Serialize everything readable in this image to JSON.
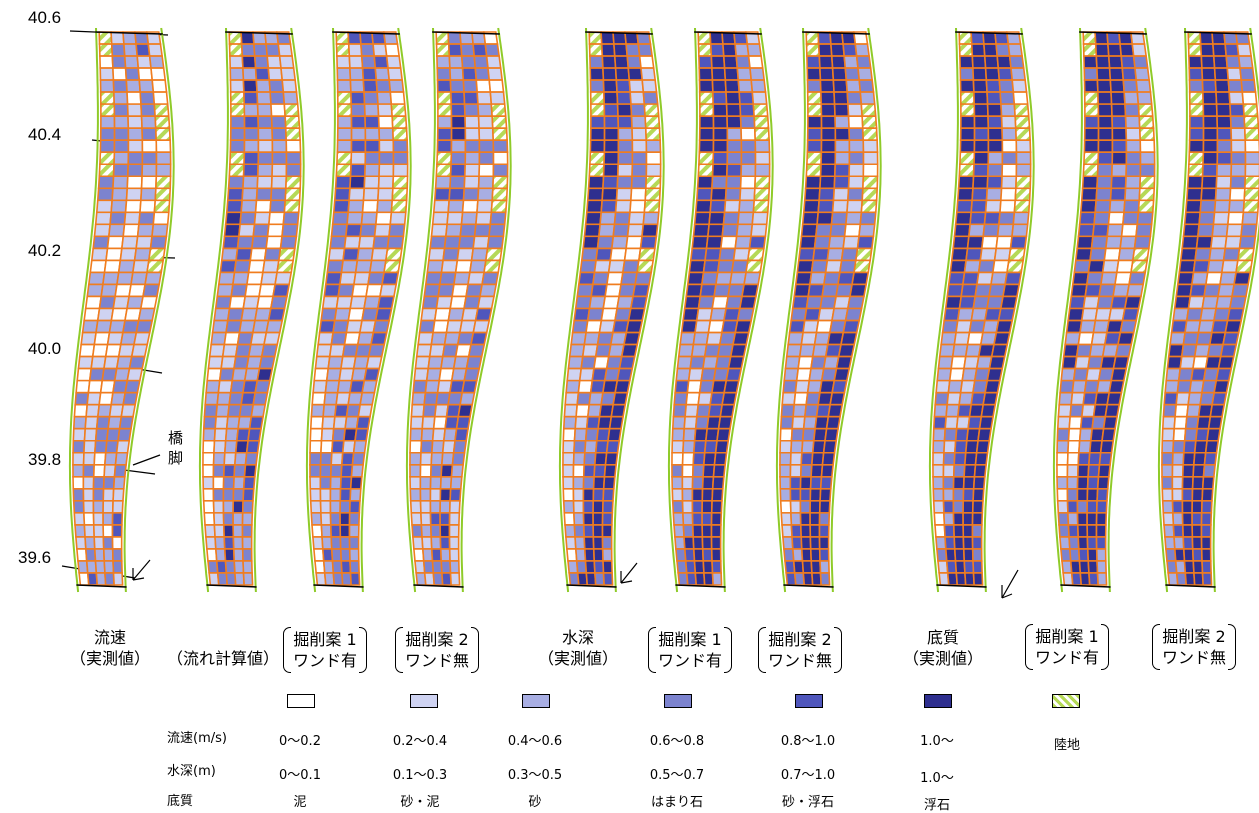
{
  "km_labels": [
    "40.6",
    "40.4",
    "40.2",
    "40.0",
    "39.8",
    "39.6"
  ],
  "pier_label": [
    "橋",
    "脚"
  ],
  "captions": {
    "velocity_measured": [
      "流速",
      "（実測値）"
    ],
    "flow_calc": "（流れ計算値）",
    "depth_measured": [
      "水深",
      "（実測値）"
    ],
    "bed_measured": [
      "底質",
      "（実測値）"
    ],
    "plan1": [
      "掘削案 1",
      "ワンド有"
    ],
    "plan2": [
      "掘削案 2",
      "ワンド無"
    ]
  },
  "legend": {
    "row_labels": [
      "流速(m/s)",
      "水深(m)",
      "底質"
    ],
    "classes": [
      {
        "fill": "#ffffff",
        "velocity": "0～0.2",
        "depth": "0～0.1",
        "bed": "泥"
      },
      {
        "fill": "#cfd3f2",
        "velocity": "0.2～0.4",
        "depth": "0.1～0.3",
        "bed": "砂・泥"
      },
      {
        "fill": "#a8aee3",
        "velocity": "0.4～0.6",
        "depth": "0.3～0.5",
        "bed": "砂"
      },
      {
        "fill": "#7c83cf",
        "velocity": "0.6～0.8",
        "depth": "0.5～0.7",
        "bed": "はまり石"
      },
      {
        "fill": "#4f56bc",
        "velocity": "0.8～1.0",
        "depth": "0.7～1.0",
        "bed": "砂・浮石"
      },
      {
        "fill": "#2e2f8f",
        "velocity": "1.0～",
        "depth": "1.0～",
        "bed": "浮石"
      }
    ],
    "land": {
      "fill": "#b5d957",
      "label": "陸地"
    }
  },
  "colors": {
    "grid": "#f07d1f",
    "bank": "#8fcb2a",
    "land": "#b5d957"
  }
}
